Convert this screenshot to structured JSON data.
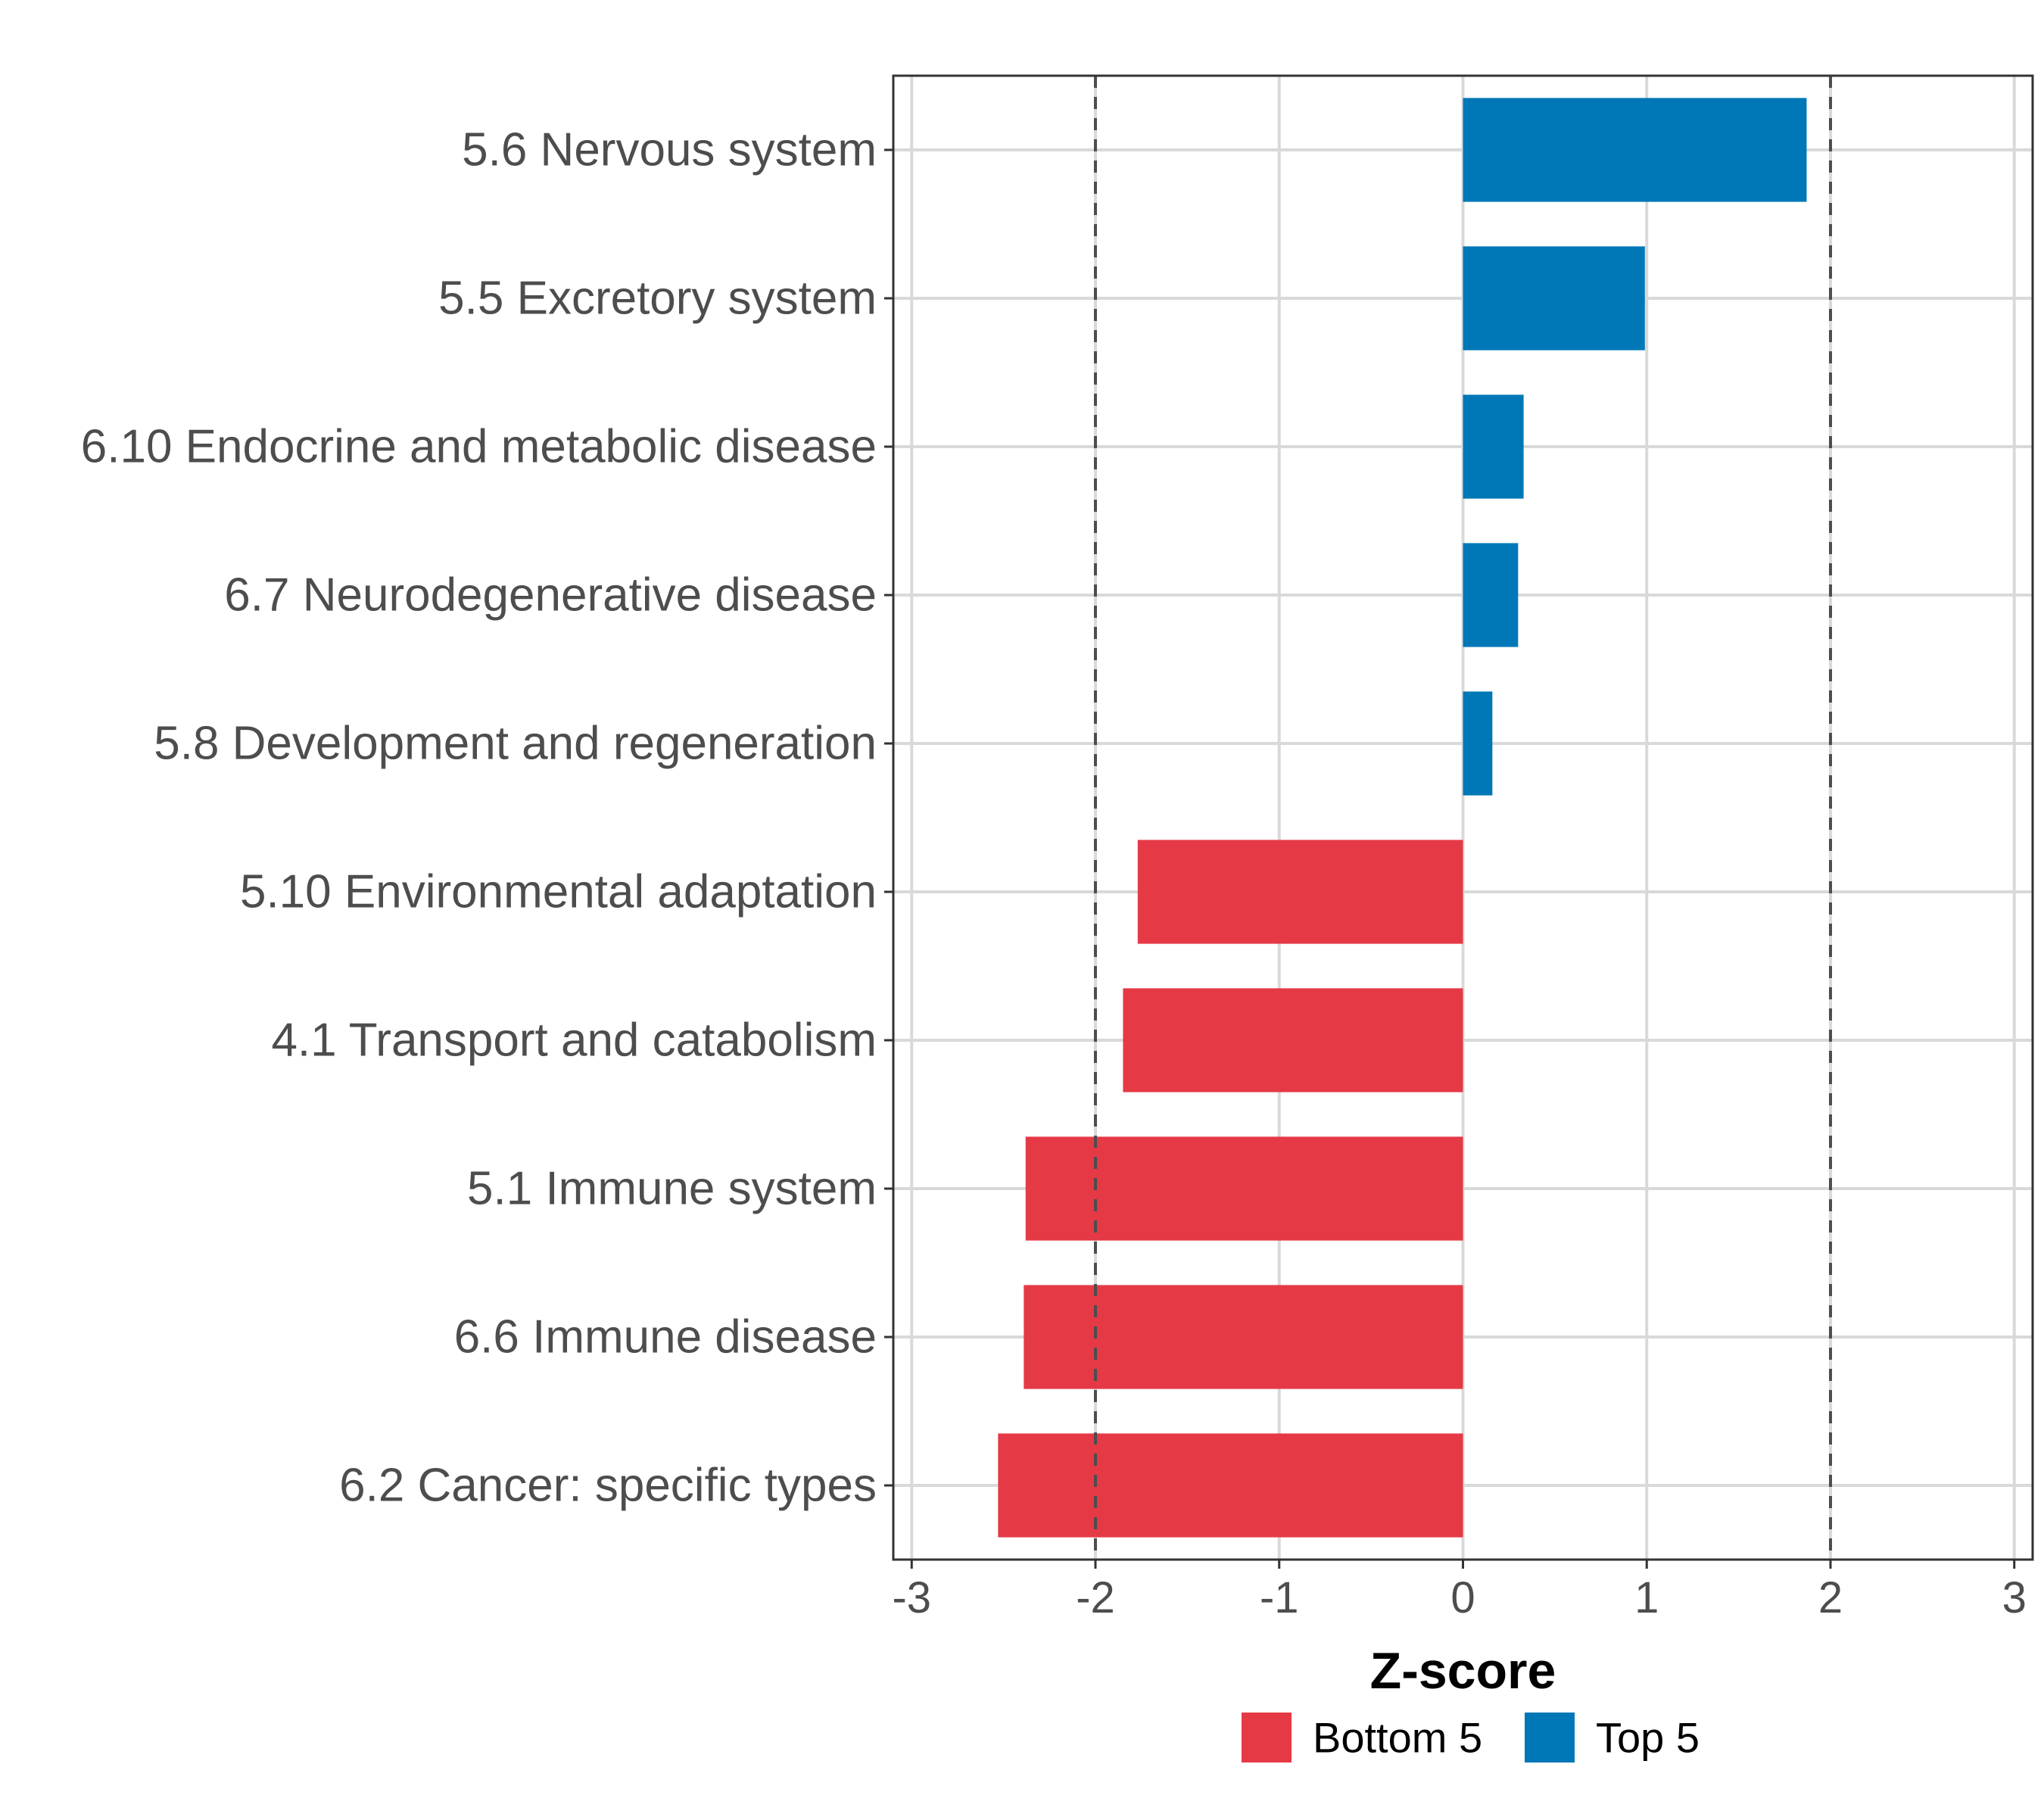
{
  "chart_data": {
    "type": "bar",
    "orientation": "horizontal",
    "categories": [
      "5.6 Nervous system",
      "5.5 Excretory system",
      "6.10 Endocrine and metabolic disease",
      "6.7 Neurodegenerative disease",
      "5.8 Development and regeneration",
      "5.10 Environmental adaptation",
      "4.1 Transport and catabolism",
      "5.1 Immune system",
      "6.6 Immune disease",
      "6.2 Cancer: specific types"
    ],
    "values": [
      1.87,
      0.99,
      0.33,
      0.3,
      0.16,
      -1.77,
      -1.85,
      -2.38,
      -2.39,
      -2.53
    ],
    "groups": [
      "Top 5",
      "Top 5",
      "Top 5",
      "Top 5",
      "Top 5",
      "Bottom 5",
      "Bottom 5",
      "Bottom 5",
      "Bottom 5",
      "Bottom 5"
    ],
    "title": "",
    "xlabel": "Z-score",
    "ylabel": "",
    "xlim": [
      -3.1,
      3.1
    ],
    "xticks": [
      -3,
      -2,
      -1,
      0,
      1,
      2,
      3
    ],
    "xtick_labels": [
      "-3",
      "-2",
      "-1",
      "0",
      "1",
      "2",
      "3"
    ],
    "reference_lines": [
      -2,
      2
    ],
    "grid": true,
    "legend": {
      "placement": "bottom",
      "entries": [
        {
          "label": "Bottom 5",
          "color": "#E63946"
        },
        {
          "label": "Top 5",
          "color": "#0077B6"
        }
      ]
    }
  }
}
